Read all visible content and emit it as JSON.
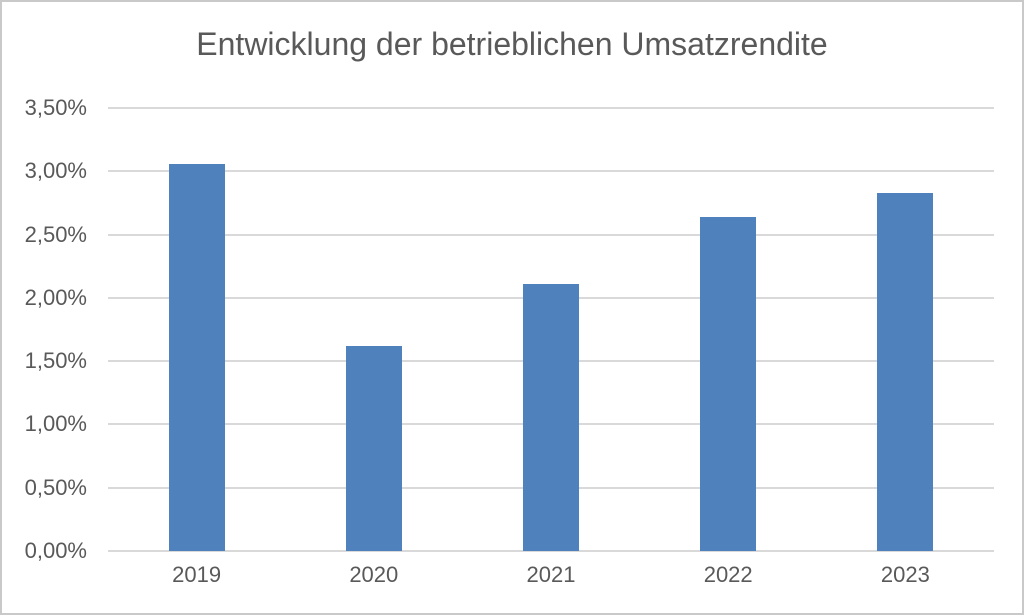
{
  "chart_data": {
    "type": "bar",
    "title": "Entwicklung der betrieblichen Umsatzrendite",
    "categories": [
      "2019",
      "2020",
      "2021",
      "2022",
      "2023"
    ],
    "values": [
      3.06,
      1.62,
      2.11,
      2.64,
      2.83
    ],
    "unit": "%",
    "xlabel": "",
    "ylabel": "",
    "ylim": [
      0,
      3.5
    ],
    "ytick_step": 0.5,
    "ytick_labels": [
      "0,00%",
      "0,50%",
      "1,00%",
      "1,50%",
      "2,00%",
      "2,50%",
      "3,00%",
      "3,50%"
    ],
    "grid": "horizontal",
    "legend": "none",
    "colors": {
      "bar": "#4F81BD",
      "gridline": "#D9D9D9",
      "axis_line": "#D9D9D9",
      "text": "#595959",
      "background": "#FFFFFF",
      "frame_border": "#C9C9C9"
    }
  }
}
